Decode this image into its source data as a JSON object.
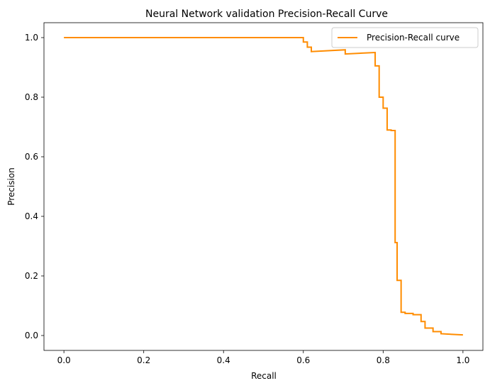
{
  "chart_data": {
    "type": "line",
    "title": "Neural Network validation Precision-Recall Curve",
    "xlabel": "Recall",
    "ylabel": "Precision",
    "xlim": [
      -0.05,
      1.05
    ],
    "ylim": [
      -0.05,
      1.05
    ],
    "xticks": [
      0.0,
      0.2,
      0.4,
      0.6,
      0.8,
      1.0
    ],
    "yticks": [
      0.0,
      0.2,
      0.4,
      0.6,
      0.8,
      1.0
    ],
    "xtick_labels": [
      "0.0",
      "0.2",
      "0.4",
      "0.6",
      "0.8",
      "1.0"
    ],
    "ytick_labels": [
      "0.0",
      "0.2",
      "0.4",
      "0.6",
      "0.8",
      "1.0"
    ],
    "grid": false,
    "legend": {
      "placement": "top-right",
      "entries": [
        "Precision-Recall curve"
      ]
    },
    "series": [
      {
        "name": "Precision-Recall curve",
        "color": "#ff8c00",
        "step": true,
        "x": [
          0.0,
          0.6,
          0.6,
          0.61,
          0.61,
          0.62,
          0.62,
          0.705,
          0.705,
          0.78,
          0.78,
          0.79,
          0.79,
          0.8,
          0.8,
          0.81,
          0.81,
          0.82,
          0.82,
          0.83,
          0.83,
          0.835,
          0.835,
          0.845,
          0.845,
          0.855,
          0.855,
          0.875,
          0.875,
          0.895,
          0.895,
          0.905,
          0.905,
          0.925,
          0.925,
          0.945,
          0.945,
          1.0
        ],
        "y": [
          1.0,
          1.0,
          0.985,
          0.985,
          0.968,
          0.968,
          0.953,
          0.959,
          0.945,
          0.95,
          0.905,
          0.905,
          0.8,
          0.8,
          0.763,
          0.763,
          0.69,
          0.69,
          0.688,
          0.688,
          0.312,
          0.312,
          0.185,
          0.185,
          0.078,
          0.078,
          0.074,
          0.074,
          0.07,
          0.07,
          0.047,
          0.047,
          0.025,
          0.025,
          0.013,
          0.013,
          0.006,
          0.002
        ]
      }
    ]
  }
}
